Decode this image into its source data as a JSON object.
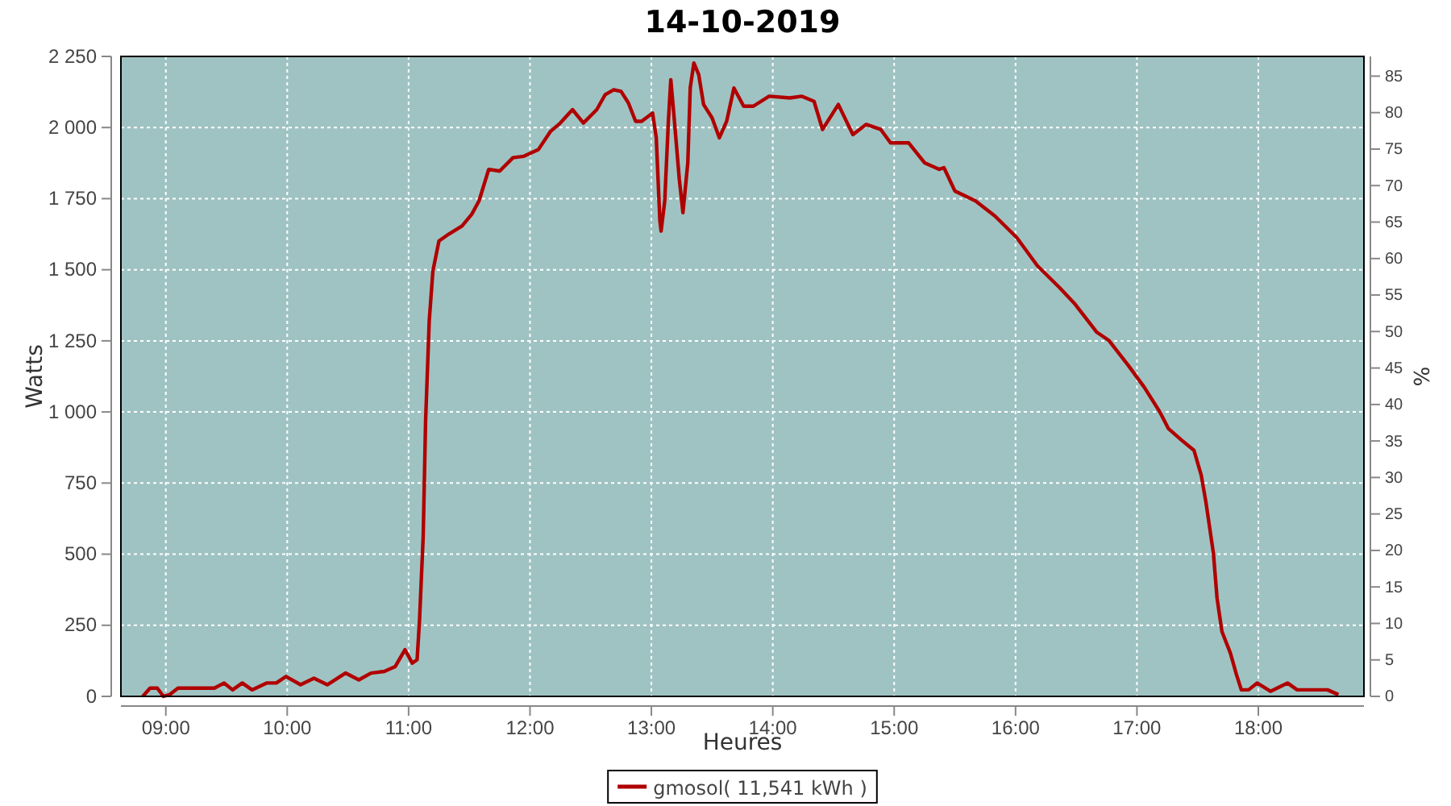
{
  "chart_data": {
    "type": "line",
    "title": "14-10-2019",
    "xlabel": "Heures",
    "ylabel": "Watts",
    "y2label": "%",
    "xlim": [
      8.63,
      18.87
    ],
    "xticks": [
      {
        "value": 9,
        "label": "09:00"
      },
      {
        "value": 10,
        "label": "10:00"
      },
      {
        "value": 11,
        "label": "11:00"
      },
      {
        "value": 12,
        "label": "12:00"
      },
      {
        "value": 13,
        "label": "13:00"
      },
      {
        "value": 14,
        "label": "14:00"
      },
      {
        "value": 15,
        "label": "15:00"
      },
      {
        "value": 16,
        "label": "16:00"
      },
      {
        "value": 17,
        "label": "17:00"
      },
      {
        "value": 18,
        "label": "18:00"
      }
    ],
    "ylim": [
      0,
      2250
    ],
    "yticks": [
      0,
      250,
      500,
      750,
      {
        "value": 1000,
        "label": "1 000"
      },
      {
        "value": 1250,
        "label": "1 250"
      },
      {
        "value": 1500,
        "label": "1 500"
      },
      {
        "value": 1750,
        "label": "1 750"
      },
      {
        "value": 2000,
        "label": "2 000"
      },
      {
        "value": 2250,
        "label": "2 250"
      }
    ],
    "y2lim": [
      0,
      87.7
    ],
    "y2ticks": [
      0,
      5,
      10,
      15,
      20,
      25,
      30,
      35,
      40,
      45,
      50,
      55,
      60,
      65,
      70,
      75,
      80,
      85
    ],
    "grid": true,
    "legend": "bottom",
    "marker": "none",
    "line_style": "solid",
    "series": [
      {
        "name": "gmosol( 11,541 kWh )",
        "color": "#b00000",
        "x": [
          8.81,
          8.87,
          8.93,
          8.98,
          9.03,
          9.1,
          9.4,
          9.48,
          9.55,
          9.63,
          9.71,
          9.83,
          9.91,
          9.99,
          10.11,
          10.22,
          10.33,
          10.48,
          10.59,
          10.69,
          10.8,
          10.89,
          10.97,
          11.03,
          11.07,
          11.09,
          11.12,
          11.14,
          11.17,
          11.2,
          11.25,
          11.33,
          11.44,
          11.52,
          11.58,
          11.66,
          11.75,
          11.86,
          11.95,
          12.07,
          12.17,
          12.25,
          12.35,
          12.44,
          12.55,
          12.62,
          12.69,
          12.75,
          12.81,
          12.87,
          12.92,
          13.01,
          13.04,
          13.07,
          13.08,
          13.11,
          13.14,
          13.16,
          13.19,
          13.23,
          13.26,
          13.3,
          13.32,
          13.35,
          13.39,
          13.43,
          13.5,
          13.56,
          13.62,
          13.68,
          13.76,
          13.84,
          13.97,
          14.14,
          14.24,
          14.34,
          14.41,
          14.54,
          14.66,
          14.77,
          14.89,
          14.97,
          15.12,
          15.25,
          15.37,
          15.41,
          15.5,
          15.67,
          15.83,
          16.01,
          16.18,
          16.36,
          16.49,
          16.67,
          16.77,
          16.93,
          17.06,
          17.19,
          17.26,
          17.37,
          17.47,
          17.53,
          17.57,
          17.63,
          17.66,
          17.7,
          17.77,
          17.82,
          17.86,
          17.92,
          17.99,
          18.1,
          18.24,
          18.32,
          18.57,
          18.66
        ],
        "values": [
          0,
          29,
          29,
          0,
          6,
          29,
          29,
          47,
          23,
          47,
          23,
          47,
          47,
          70,
          41,
          64,
          41,
          82,
          58,
          82,
          88,
          105,
          164,
          117,
          129,
          269,
          561,
          970,
          1321,
          1496,
          1601,
          1625,
          1654,
          1695,
          1742,
          1853,
          1847,
          1894,
          1899,
          1923,
          1987,
          2016,
          2063,
          2016,
          2063,
          2116,
          2133,
          2127,
          2087,
          2022,
          2022,
          2051,
          1964,
          1672,
          1636,
          1742,
          2022,
          2168,
          2022,
          1818,
          1701,
          1876,
          2139,
          2227,
          2186,
          2081,
          2034,
          1964,
          2022,
          2139,
          2075,
          2075,
          2110,
          2104,
          2110,
          2092,
          1993,
          2081,
          1975,
          2011,
          1993,
          1946,
          1946,
          1876,
          1853,
          1859,
          1777,
          1742,
          1689,
          1613,
          1514,
          1438,
          1379,
          1280,
          1251,
          1163,
          1087,
          999,
          941,
          900,
          865,
          777,
          678,
          503,
          345,
          228,
          152,
          76,
          23,
          23,
          47,
          18,
          47,
          23,
          23,
          6
        ]
      }
    ]
  }
}
